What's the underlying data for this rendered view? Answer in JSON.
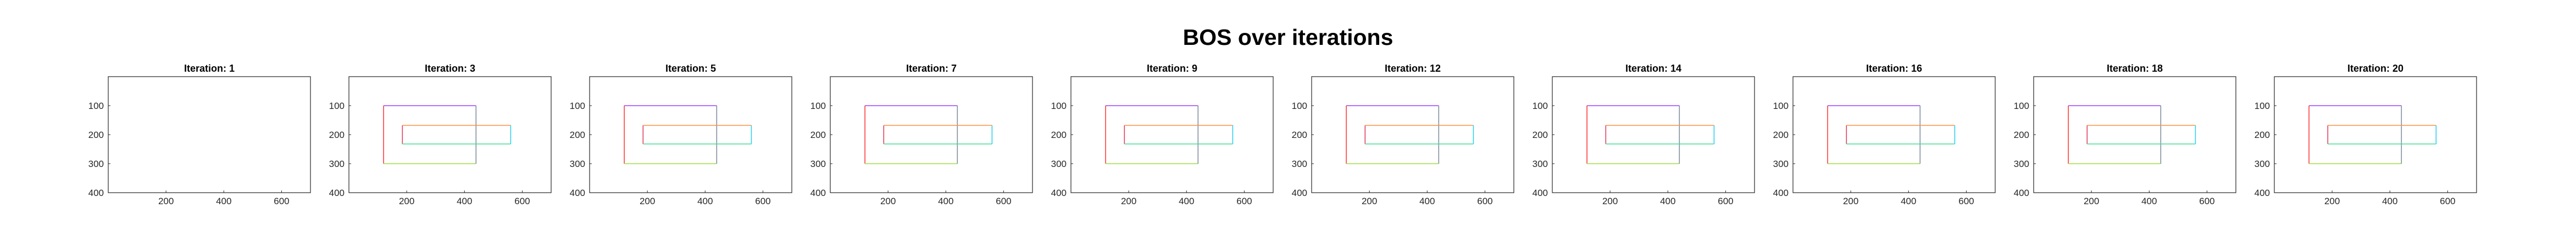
{
  "figure": {
    "title": "BOS over iterations"
  },
  "chart_data": [
    {
      "type": "line",
      "title": "Iteration: 1",
      "xlim": [
        0,
        700
      ],
      "ylim": [
        400,
        0
      ],
      "xticks": [
        200,
        400,
        600
      ],
      "yticks": [
        100,
        200,
        300,
        400
      ],
      "grid": false,
      "series": []
    },
    {
      "type": "line",
      "title": "Iteration: 3",
      "xlim": [
        0,
        700
      ],
      "ylim": [
        400,
        0
      ],
      "xticks": [
        200,
        400,
        600
      ],
      "yticks": [
        100,
        200,
        300,
        400
      ],
      "grid": false,
      "series": "bos_rectangles"
    },
    {
      "type": "line",
      "title": "Iteration: 5",
      "xlim": [
        0,
        700
      ],
      "ylim": [
        400,
        0
      ],
      "xticks": [
        200,
        400,
        600
      ],
      "yticks": [
        100,
        200,
        300,
        400
      ],
      "grid": false,
      "series": "bos_rectangles"
    },
    {
      "type": "line",
      "title": "Iteration: 7",
      "xlim": [
        0,
        700
      ],
      "ylim": [
        400,
        0
      ],
      "xticks": [
        200,
        400,
        600
      ],
      "yticks": [
        100,
        200,
        300,
        400
      ],
      "grid": false,
      "series": "bos_rectangles"
    },
    {
      "type": "line",
      "title": "Iteration: 9",
      "xlim": [
        0,
        700
      ],
      "ylim": [
        400,
        0
      ],
      "xticks": [
        200,
        400,
        600
      ],
      "yticks": [
        100,
        200,
        300,
        400
      ],
      "grid": false,
      "series": "bos_rectangles"
    },
    {
      "type": "line",
      "title": "Iteration: 12",
      "xlim": [
        0,
        700
      ],
      "ylim": [
        400,
        0
      ],
      "xticks": [
        200,
        400,
        600
      ],
      "yticks": [
        100,
        200,
        300,
        400
      ],
      "grid": false,
      "series": "bos_rectangles"
    },
    {
      "type": "line",
      "title": "Iteration: 14",
      "xlim": [
        0,
        700
      ],
      "ylim": [
        400,
        0
      ],
      "xticks": [
        200,
        400,
        600
      ],
      "yticks": [
        100,
        200,
        300,
        400
      ],
      "grid": false,
      "series": "bos_rectangles"
    },
    {
      "type": "line",
      "title": "Iteration: 16",
      "xlim": [
        0,
        700
      ],
      "ylim": [
        400,
        0
      ],
      "xticks": [
        200,
        400,
        600
      ],
      "yticks": [
        100,
        200,
        300,
        400
      ],
      "grid": false,
      "series": "bos_rectangles"
    },
    {
      "type": "line",
      "title": "Iteration: 18",
      "xlim": [
        0,
        700
      ],
      "ylim": [
        400,
        0
      ],
      "xticks": [
        200,
        400,
        600
      ],
      "yticks": [
        100,
        200,
        300,
        400
      ],
      "grid": false,
      "series": "bos_rectangles"
    },
    {
      "type": "line",
      "title": "Iteration: 20",
      "xlim": [
        0,
        700
      ],
      "ylim": [
        400,
        0
      ],
      "xticks": [
        200,
        400,
        600
      ],
      "yticks": [
        100,
        200,
        300,
        400
      ],
      "grid": false,
      "series": "bos_rectangles"
    }
  ],
  "bos_rectangles": [
    {
      "color": "#ff3b3b",
      "points": [
        [
          120,
          100
        ],
        [
          120,
          300
        ]
      ]
    },
    {
      "color": "#a040ff",
      "points": [
        [
          120,
          100
        ],
        [
          440,
          100
        ]
      ]
    },
    {
      "color": "#a0e040",
      "points": [
        [
          120,
          300
        ],
        [
          440,
          300
        ]
      ]
    },
    {
      "color": "#8090a0",
      "points": [
        [
          440,
          100
        ],
        [
          440,
          300
        ]
      ]
    },
    {
      "color": "#e04060",
      "points": [
        [
          185,
          168
        ],
        [
          185,
          232
        ]
      ]
    },
    {
      "color": "#ff9040",
      "points": [
        [
          185,
          168
        ],
        [
          560,
          168
        ]
      ]
    },
    {
      "color": "#40e090",
      "points": [
        [
          185,
          232
        ],
        [
          560,
          232
        ]
      ]
    },
    {
      "color": "#30d0f0",
      "points": [
        [
          560,
          168
        ],
        [
          560,
          232
        ]
      ]
    }
  ]
}
